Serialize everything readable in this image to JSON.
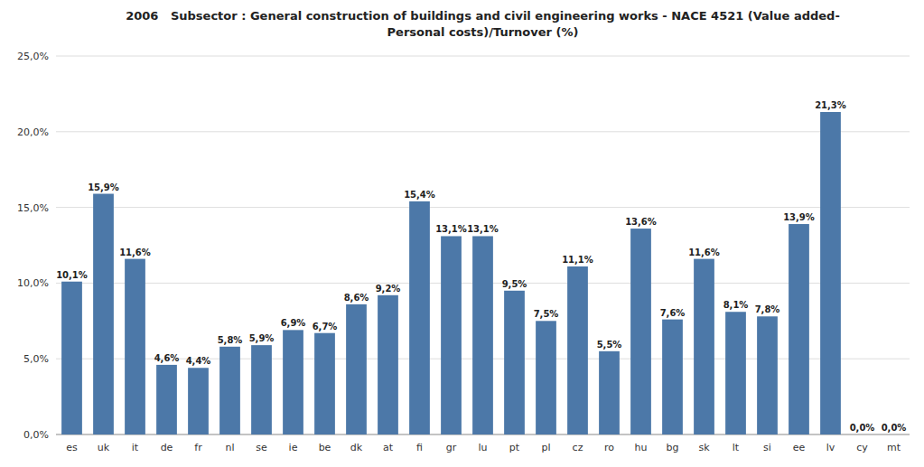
{
  "chart_data": {
    "type": "bar",
    "title": "2006   Subsector : General construction of buildings and civil engineering works - NACE 4521 (Value added-\nPersonal costs)/Turnover (%)",
    "categories": [
      "es",
      "uk",
      "it",
      "de",
      "fr",
      "nl",
      "se",
      "ie",
      "be",
      "dk",
      "at",
      "fi",
      "gr",
      "lu",
      "pt",
      "pl",
      "cz",
      "ro",
      "hu",
      "bg",
      "sk",
      "lt",
      "si",
      "ee",
      "lv",
      "cy",
      "mt"
    ],
    "values": [
      10.1,
      15.9,
      11.6,
      4.6,
      4.4,
      5.8,
      5.9,
      6.9,
      6.7,
      8.6,
      9.2,
      15.4,
      13.1,
      13.1,
      9.5,
      7.5,
      11.1,
      5.5,
      13.6,
      7.6,
      11.6,
      8.1,
      7.8,
      13.9,
      21.3,
      0.0,
      0.0
    ],
    "value_labels": [
      "10,1%",
      "15,9%",
      "11,6%",
      "4,6%",
      "4,4%",
      "5,8%",
      "5,9%",
      "6,9%",
      "6,7%",
      "8,6%",
      "9,2%",
      "15,4%",
      "13,1%",
      "13,1%",
      "9,5%",
      "7,5%",
      "11,1%",
      "5,5%",
      "13,6%",
      "7,6%",
      "11,6%",
      "8,1%",
      "7,8%",
      "13,9%",
      "21,3%",
      "0,0%",
      "0,0%"
    ],
    "ylim": [
      0,
      25
    ],
    "yticks": [
      {
        "value": 0,
        "label": "0,0%"
      },
      {
        "value": 5,
        "label": "5,0%"
      },
      {
        "value": 10,
        "label": "10,0%"
      },
      {
        "value": 15,
        "label": "15,0%"
      },
      {
        "value": 20,
        "label": "20,0%"
      },
      {
        "value": 25,
        "label": "25,0%"
      }
    ],
    "grid": true,
    "data_labels": true
  }
}
